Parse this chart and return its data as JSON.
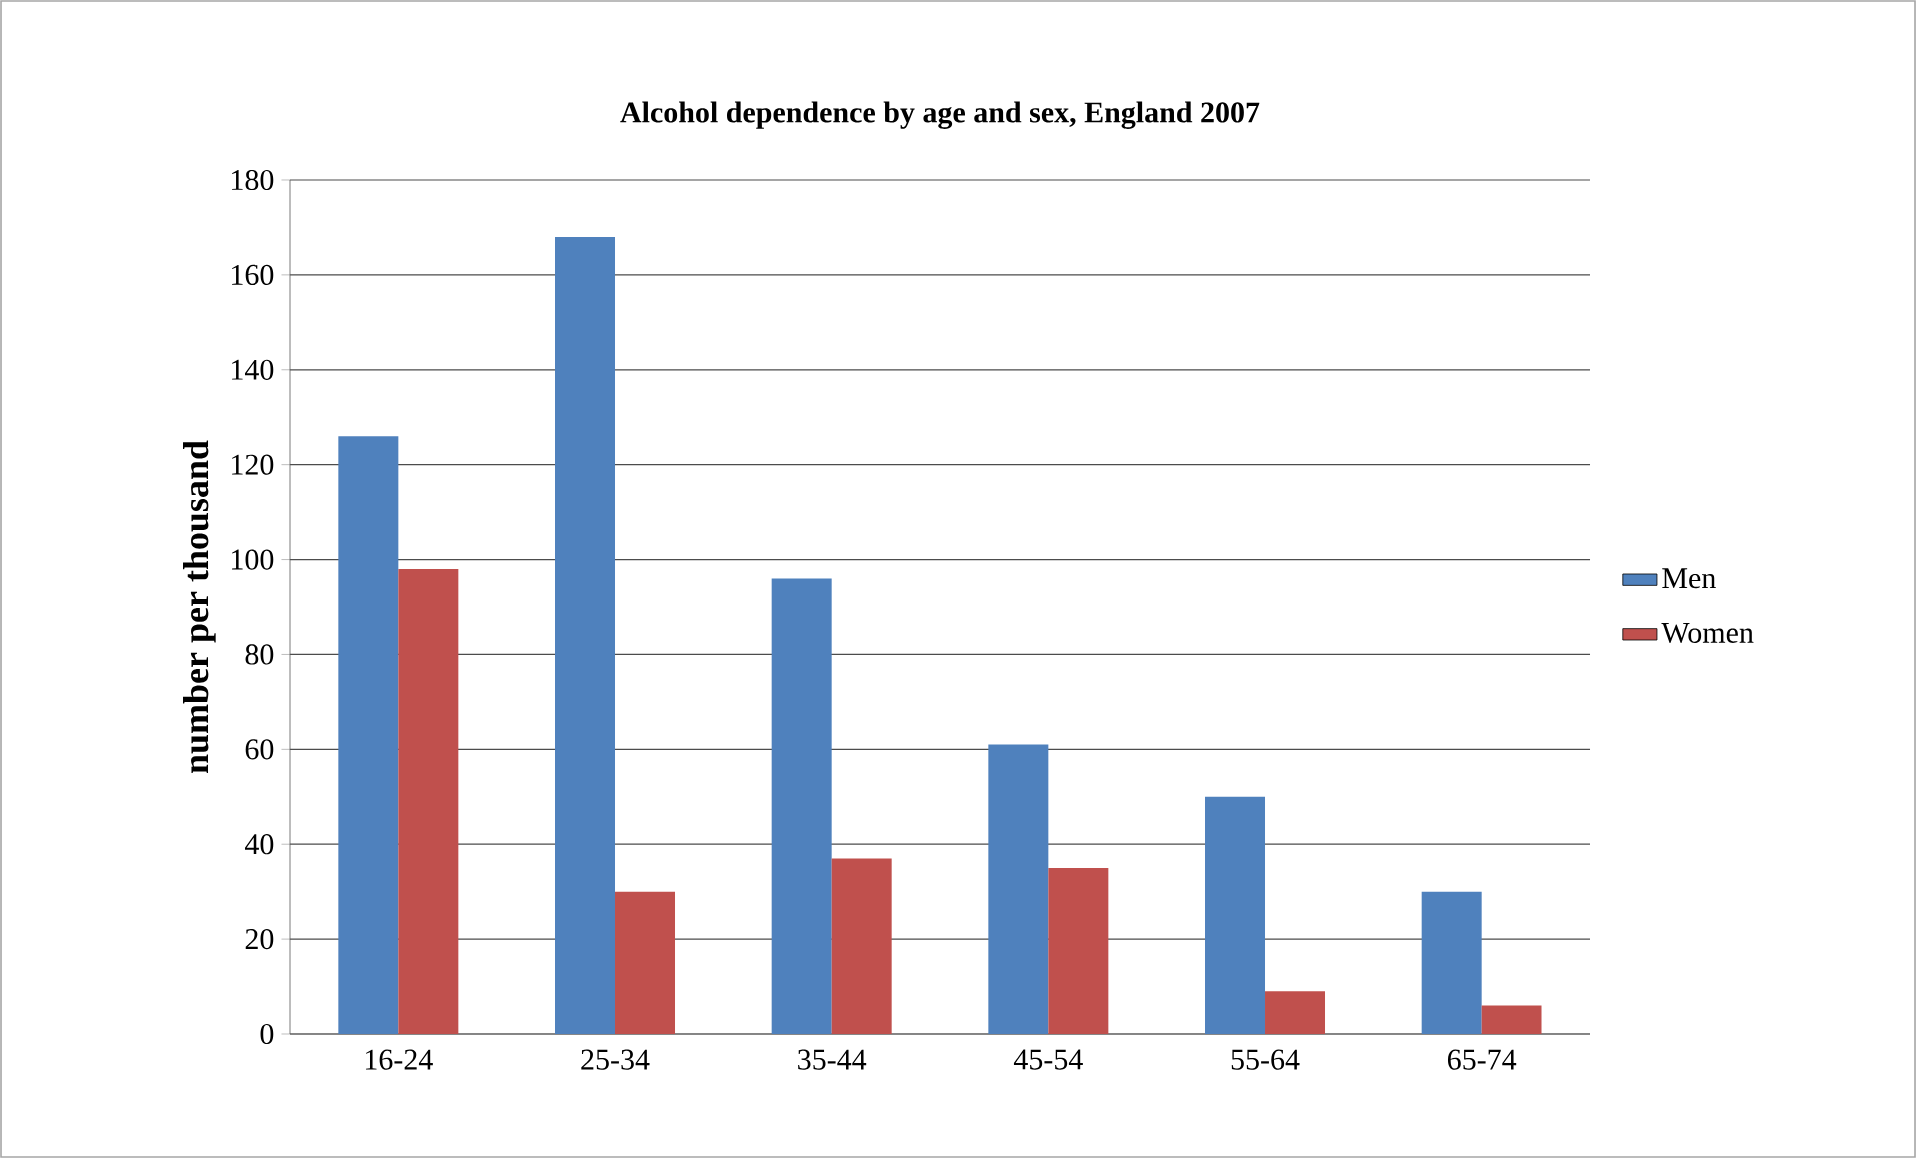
{
  "chart_data": {
    "type": "bar",
    "title": "Alcohol dependence by age and sex, England 2007",
    "ylabel": "number per thousand",
    "categories": [
      "16-24",
      "25-34",
      "35-44",
      "45-54",
      "55-64",
      "65-74"
    ],
    "series": [
      {
        "name": "Men",
        "color": "#4f81bd",
        "values": [
          126,
          168,
          96,
          61,
          50,
          30
        ]
      },
      {
        "name": "Women",
        "color": "#c0504d",
        "values": [
          98,
          30,
          37,
          35,
          9,
          6
        ]
      }
    ],
    "ylim": [
      0,
      180
    ],
    "yticks": [
      0,
      20,
      40,
      60,
      80,
      100,
      120,
      140,
      160,
      180
    ],
    "grid": "y",
    "legend": "right"
  }
}
